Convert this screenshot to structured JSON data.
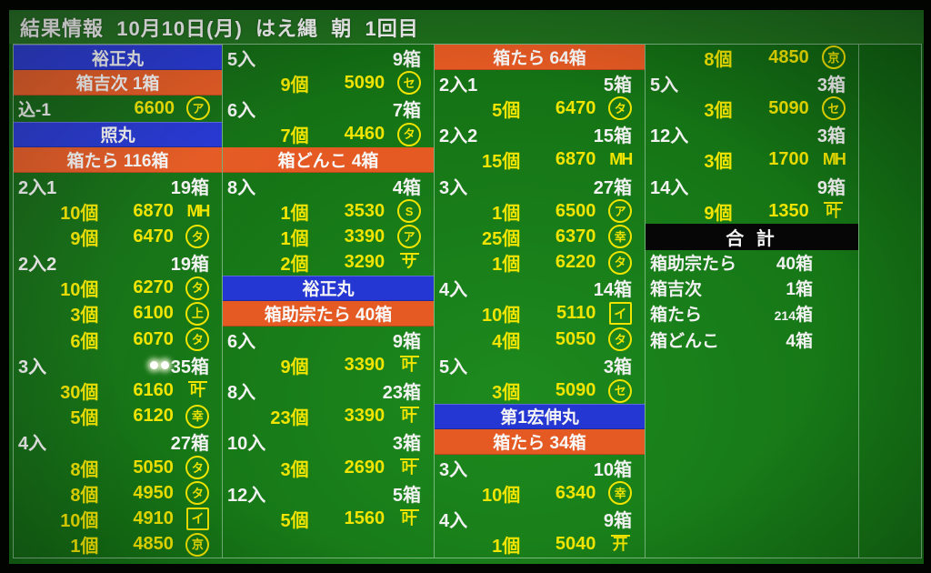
{
  "title": "結果情報  10月10日(月)  はえ縄  朝  1回目",
  "colors": {
    "background_green": "#157415",
    "titlebar_green": "#1d6b1d",
    "header_blue": "#2537d2",
    "header_orange": "#e55a23",
    "total_black": "#060606",
    "text_yellow": "#f0e400",
    "text_white": "#f2f2f2"
  },
  "columns": [
    {
      "rows": [
        {
          "t": "ship",
          "text": "裕正丸"
        },
        {
          "t": "lot",
          "text": "箱吉次 1箱"
        },
        {
          "t": "mix",
          "label": "込-1",
          "price": "6600",
          "mark": {
            "style": "circle",
            "ch": "ア"
          }
        },
        {
          "t": "ship",
          "text": "照丸"
        },
        {
          "t": "lot",
          "text": "箱たら 116箱"
        },
        {
          "t": "size",
          "label": "2入1",
          "count": "19箱"
        },
        {
          "t": "detail",
          "qty": "10個",
          "price": "6870",
          "mark": {
            "style": "plain",
            "ch": "MH"
          }
        },
        {
          "t": "detail",
          "qty": "9個",
          "price": "6470",
          "mark": {
            "style": "circle",
            "ch": "タ"
          }
        },
        {
          "t": "size",
          "label": "2入2",
          "count": "19箱"
        },
        {
          "t": "detail",
          "qty": "10個",
          "price": "6270",
          "mark": {
            "style": "circle",
            "ch": "タ"
          }
        },
        {
          "t": "detail",
          "qty": "3個",
          "price": "6100",
          "mark": {
            "style": "circle",
            "ch": "上"
          }
        },
        {
          "t": "detail",
          "qty": "6個",
          "price": "6070",
          "mark": {
            "style": "circle",
            "ch": "タ"
          }
        },
        {
          "t": "size",
          "label": "3入",
          "count": "35箱",
          "glare": true
        },
        {
          "t": "detail",
          "qty": "30個",
          "price": "6160",
          "mark": {
            "style": "over",
            "ch": "叶"
          }
        },
        {
          "t": "detail",
          "qty": "5個",
          "price": "6120",
          "mark": {
            "style": "circle",
            "ch": "幸"
          }
        },
        {
          "t": "size",
          "label": "4入",
          "count": "27箱"
        },
        {
          "t": "detail",
          "qty": "8個",
          "price": "5050",
          "mark": {
            "style": "circle",
            "ch": "タ"
          }
        },
        {
          "t": "detail",
          "qty": "8個",
          "price": "4950",
          "mark": {
            "style": "circle",
            "ch": "タ"
          }
        },
        {
          "t": "detail",
          "qty": "10個",
          "price": "4910",
          "mark": {
            "style": "box",
            "ch": "イ"
          }
        },
        {
          "t": "detail",
          "qty": "1個",
          "price": "4850",
          "mark": {
            "style": "circle",
            "ch": "京"
          }
        }
      ]
    },
    {
      "rows": [
        {
          "t": "size",
          "label": "5入",
          "count": "9箱"
        },
        {
          "t": "detail",
          "qty": "9個",
          "price": "5090",
          "mark": {
            "style": "circle",
            "ch": "セ"
          }
        },
        {
          "t": "size",
          "label": "6入",
          "count": "7箱"
        },
        {
          "t": "detail",
          "qty": "7個",
          "price": "4460",
          "mark": {
            "style": "circle",
            "ch": "タ"
          }
        },
        {
          "t": "lot",
          "text": "箱どんこ 4箱"
        },
        {
          "t": "size",
          "label": "8入",
          "count": "4箱"
        },
        {
          "t": "detail",
          "qty": "1個",
          "price": "3530",
          "mark": {
            "style": "circle",
            "ch": "S"
          }
        },
        {
          "t": "detail",
          "qty": "1個",
          "price": "3390",
          "mark": {
            "style": "circle",
            "ch": "ア"
          }
        },
        {
          "t": "detail",
          "qty": "2個",
          "price": "3290",
          "mark": {
            "style": "over",
            "ch": "サ"
          }
        },
        {
          "t": "ship",
          "text": "裕正丸"
        },
        {
          "t": "lot",
          "text": "箱助宗たら 40箱"
        },
        {
          "t": "size",
          "label": "6入",
          "count": "9箱"
        },
        {
          "t": "detail",
          "qty": "9個",
          "price": "3390",
          "mark": {
            "style": "over",
            "ch": "叶"
          }
        },
        {
          "t": "size",
          "label": "8入",
          "count": "23箱"
        },
        {
          "t": "detail",
          "qty": "23個",
          "price": "3390",
          "mark": {
            "style": "over",
            "ch": "叶"
          }
        },
        {
          "t": "size",
          "label": "10入",
          "count": "3箱"
        },
        {
          "t": "detail",
          "qty": "3個",
          "price": "2690",
          "mark": {
            "style": "over",
            "ch": "叶"
          }
        },
        {
          "t": "size",
          "label": "12入",
          "count": "5箱"
        },
        {
          "t": "detail",
          "qty": "5個",
          "price": "1560",
          "mark": {
            "style": "over",
            "ch": "叶"
          }
        }
      ]
    },
    {
      "rows": [
        {
          "t": "lot",
          "text": "箱たら 64箱"
        },
        {
          "t": "size",
          "label": "2入1",
          "count": "5箱"
        },
        {
          "t": "detail",
          "qty": "5個",
          "price": "6470",
          "mark": {
            "style": "circle",
            "ch": "タ"
          }
        },
        {
          "t": "size",
          "label": "2入2",
          "count": "15箱"
        },
        {
          "t": "detail",
          "qty": "15個",
          "price": "6870",
          "mark": {
            "style": "plain",
            "ch": "MH"
          }
        },
        {
          "t": "size",
          "label": "3入",
          "count": "27箱"
        },
        {
          "t": "detail",
          "qty": "1個",
          "price": "6500",
          "mark": {
            "style": "circle",
            "ch": "ア"
          }
        },
        {
          "t": "detail",
          "qty": "25個",
          "price": "6370",
          "mark": {
            "style": "circle",
            "ch": "幸"
          }
        },
        {
          "t": "detail",
          "qty": "1個",
          "price": "6220",
          "mark": {
            "style": "circle",
            "ch": "タ"
          }
        },
        {
          "t": "size",
          "label": "4入",
          "count": "14箱"
        },
        {
          "t": "detail",
          "qty": "10個",
          "price": "5110",
          "mark": {
            "style": "box",
            "ch": "イ"
          }
        },
        {
          "t": "detail",
          "qty": "4個",
          "price": "5050",
          "mark": {
            "style": "circle",
            "ch": "タ"
          }
        },
        {
          "t": "size",
          "label": "5入",
          "count": "3箱"
        },
        {
          "t": "detail",
          "qty": "3個",
          "price": "5090",
          "mark": {
            "style": "circle",
            "ch": "セ"
          }
        },
        {
          "t": "ship",
          "text": "第1宏伸丸"
        },
        {
          "t": "lot",
          "text": "箱たら 34箱"
        },
        {
          "t": "size",
          "label": "3入",
          "count": "10箱"
        },
        {
          "t": "detail",
          "qty": "10個",
          "price": "6340",
          "mark": {
            "style": "circle",
            "ch": "幸"
          }
        },
        {
          "t": "size",
          "label": "4入",
          "count": "9箱"
        },
        {
          "t": "detail",
          "qty": "1個",
          "price": "5040",
          "mark": {
            "style": "over",
            "ch": "开"
          }
        }
      ]
    },
    {
      "rows": [
        {
          "t": "detail",
          "qty": "8個",
          "price": "4850",
          "mark": {
            "style": "circle",
            "ch": "京"
          }
        },
        {
          "t": "size",
          "label": "5入",
          "count": "3箱"
        },
        {
          "t": "detail",
          "qty": "3個",
          "price": "5090",
          "mark": {
            "style": "circle",
            "ch": "セ"
          }
        },
        {
          "t": "size",
          "label": "12入",
          "count": "3箱"
        },
        {
          "t": "detail",
          "qty": "3個",
          "price": "1700",
          "mark": {
            "style": "plain",
            "ch": "MH"
          }
        },
        {
          "t": "size",
          "label": "14入",
          "count": "9箱"
        },
        {
          "t": "detail",
          "qty": "9個",
          "price": "1350",
          "mark": {
            "style": "over",
            "ch": "叶"
          }
        },
        {
          "t": "theader",
          "text": "合 計"
        },
        {
          "t": "trow",
          "label": "箱助宗たら",
          "num": "40",
          "unit": "箱",
          "small": false
        },
        {
          "t": "trow",
          "label": "箱吉次",
          "num": "1",
          "unit": "箱",
          "small": false
        },
        {
          "t": "trow",
          "label": "箱たら",
          "num": "214",
          "unit": "箱",
          "small": true
        },
        {
          "t": "trow",
          "label": "箱どんこ",
          "num": "4",
          "unit": "箱",
          "small": false
        }
      ]
    },
    {
      "rows": []
    }
  ]
}
